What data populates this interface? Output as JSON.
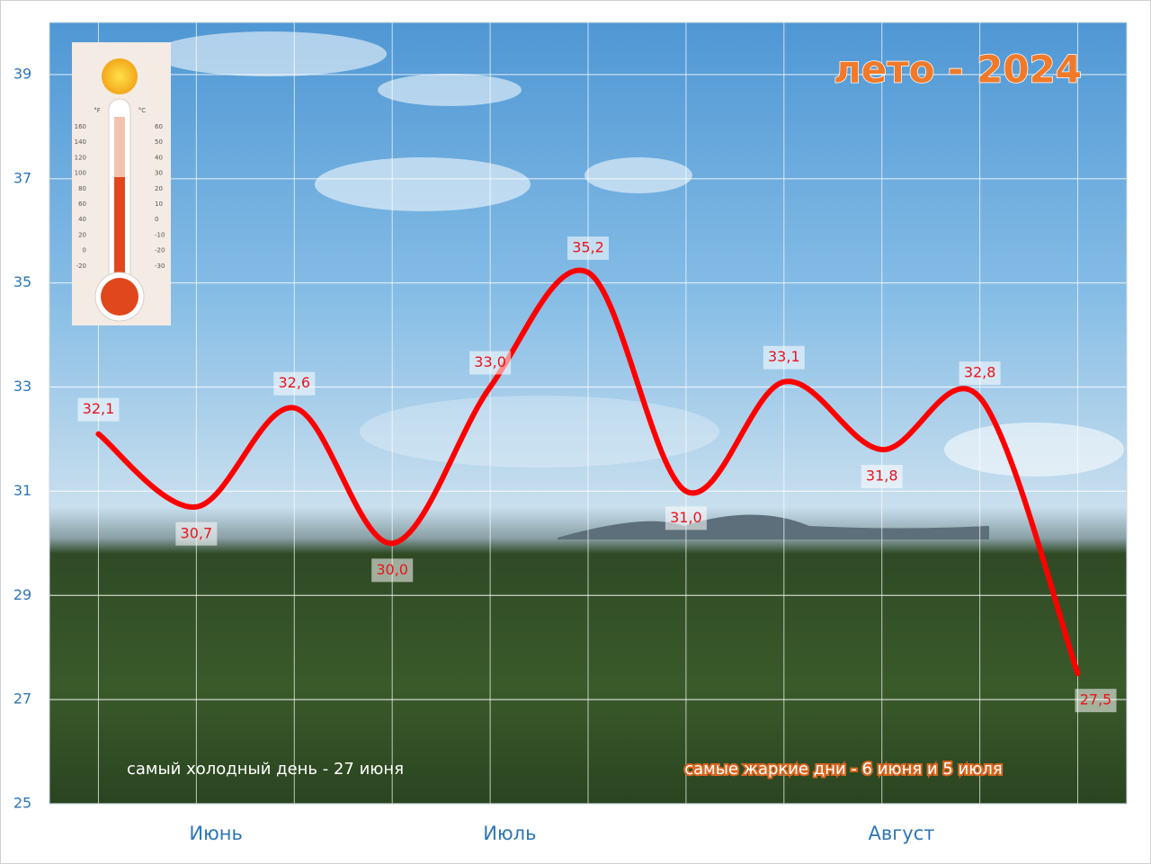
{
  "chart_data": {
    "type": "line",
    "title": "лето - 2024",
    "categories": [
      null,
      null,
      null,
      null,
      null,
      null,
      null,
      null,
      null,
      null,
      null
    ],
    "series": [
      {
        "color": "#ff0000",
        "values": [
          32.1,
          30.7,
          32.6,
          30.0,
          33.0,
          35.2,
          31.0,
          33.1,
          31.8,
          32.8,
          27.5
        ],
        "value_labels": [
          "32,1",
          "30,7",
          "32,6",
          "30,0",
          "33,0",
          "35,2",
          "31,0",
          "33,1",
          "31,8",
          "32,8",
          "27,5"
        ]
      }
    ],
    "month_labels": [
      "Июнь",
      "Июль",
      "Август"
    ],
    "ylim": [
      25,
      40
    ],
    "yticks": [
      25,
      27,
      29,
      31,
      33,
      35,
      37,
      39
    ],
    "grid": true,
    "annotations": [
      "самый холодный день - 27 июня",
      "самые  жаркие дни  - 6 июня и 5 июля"
    ]
  },
  "thermometer": {
    "f_label": "°F",
    "c_label": "°C",
    "f_scale": [
      160,
      140,
      120,
      100,
      80,
      60,
      40,
      20,
      0,
      -20
    ],
    "c_scale": [
      60,
      50,
      40,
      30,
      20,
      10,
      0,
      -10,
      -20,
      -30
    ]
  }
}
